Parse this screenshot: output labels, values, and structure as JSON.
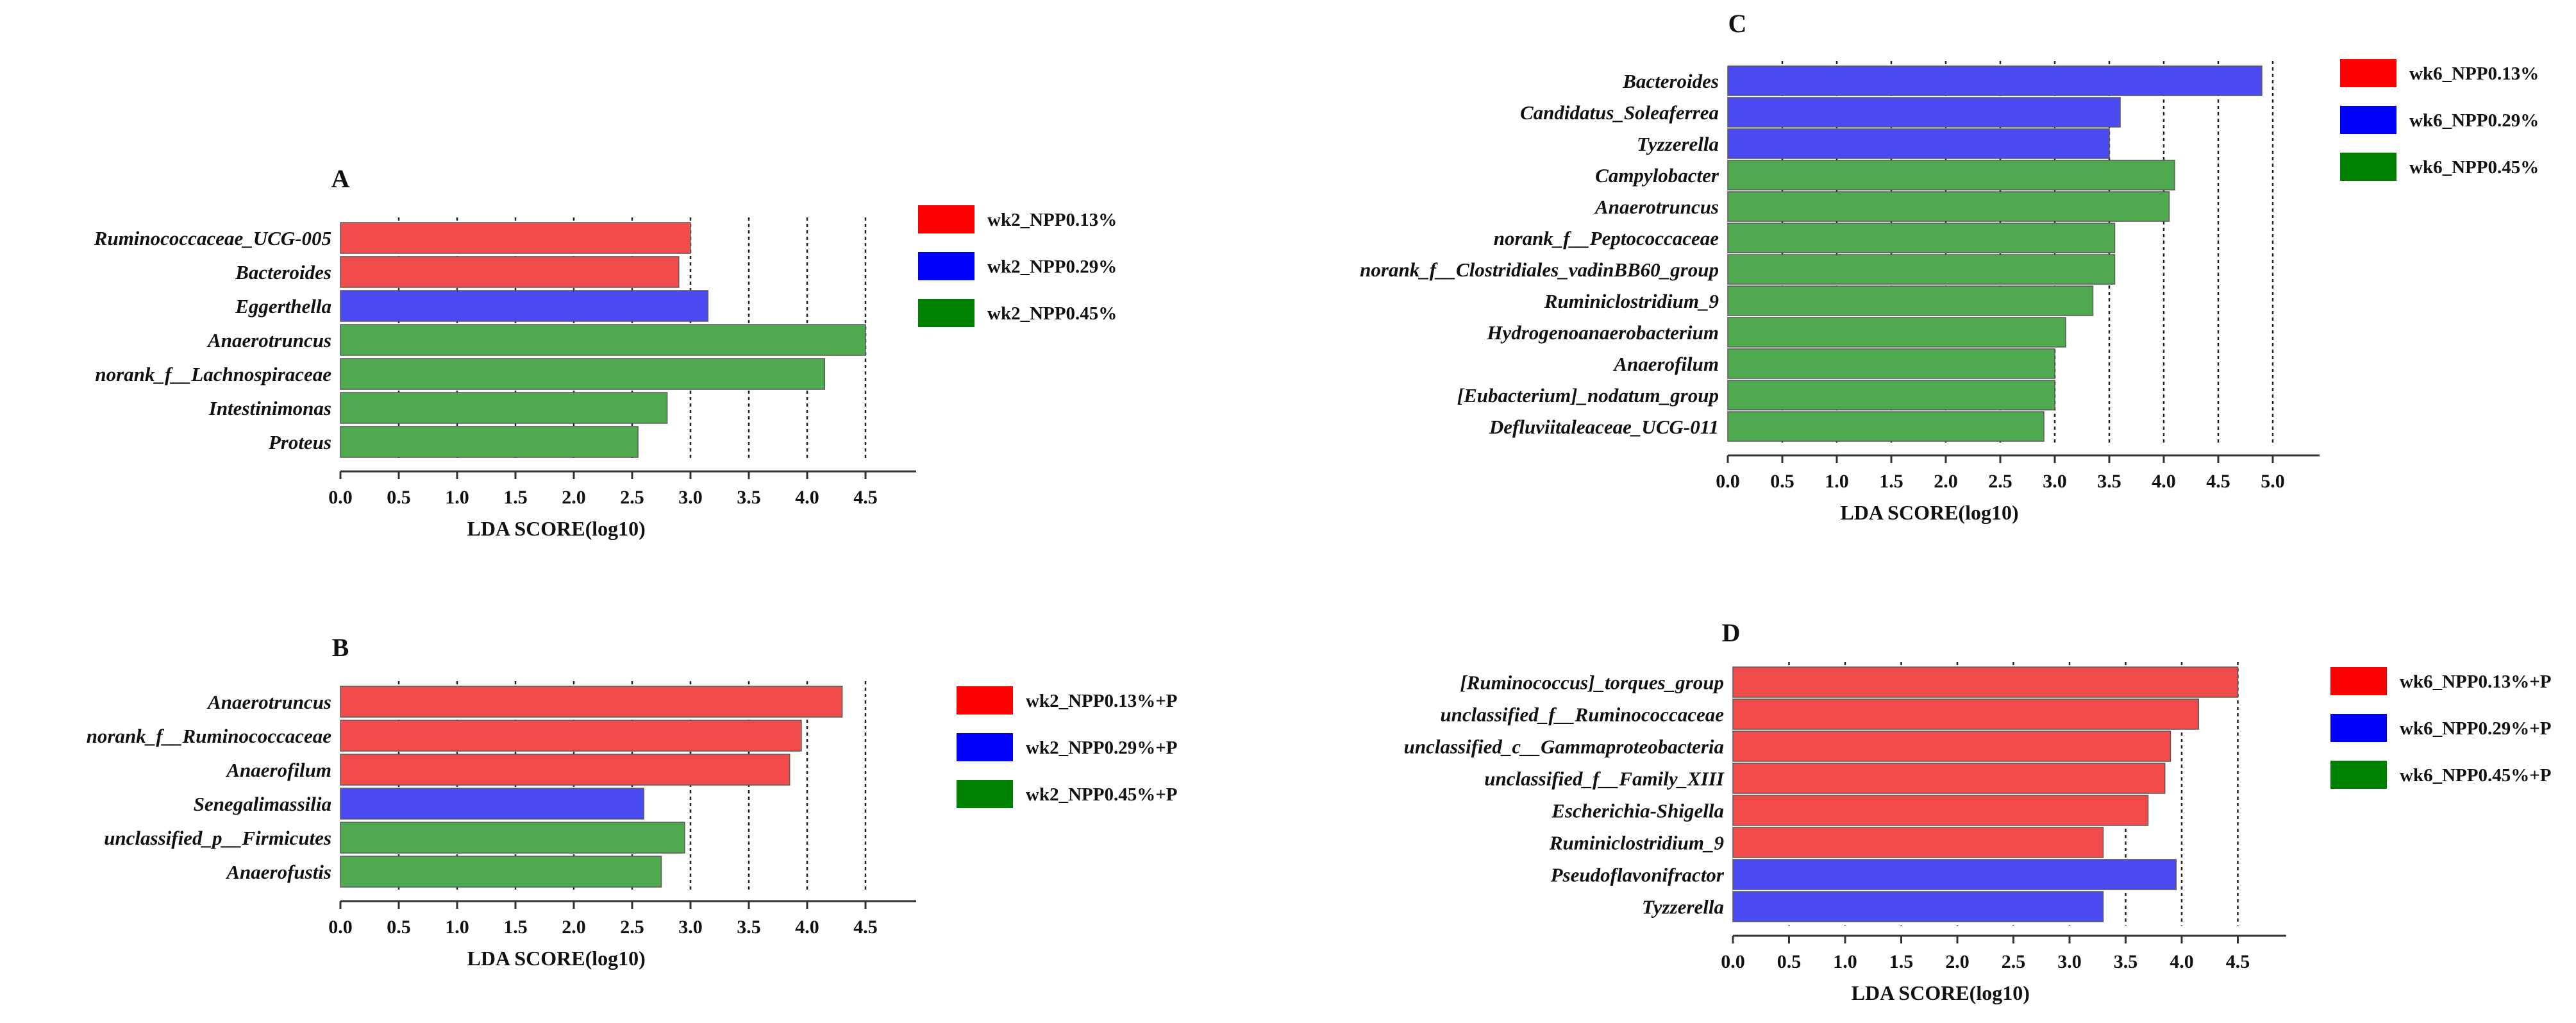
{
  "chart_data": [
    {
      "panel": "A",
      "type": "bar",
      "orientation": "horizontal",
      "title": "A",
      "xlabel": "LDA SCORE(log10)",
      "xlim": [
        0,
        5.0
      ],
      "xticks": [
        "0.0",
        "0.5",
        "1.0",
        "1.5",
        "2.0",
        "2.5",
        "3.0",
        "3.5",
        "4.0",
        "4.5"
      ],
      "grid": "vertical dotted lines",
      "legend_position": "right",
      "legend": [
        {
          "label": "wk2_NPP0.13%",
          "color": "#ff0000"
        },
        {
          "label": "wk2_NPP0.29%",
          "color": "#0000ff"
        },
        {
          "label": "wk2_NPP0.45%",
          "color": "#008000"
        }
      ],
      "bars": [
        {
          "label": "Ruminococcaceae_UCG-005",
          "value": 3.0,
          "group": 0
        },
        {
          "label": "Bacteroides",
          "value": 2.9,
          "group": 0
        },
        {
          "label": "Eggerthella",
          "value": 3.15,
          "group": 1
        },
        {
          "label": "Anaerotruncus",
          "value": 4.5,
          "group": 2
        },
        {
          "label": "norank_f__Lachnospiraceae",
          "value": 4.15,
          "group": 2
        },
        {
          "label": "Intestinimonas",
          "value": 2.8,
          "group": 2
        },
        {
          "label": "Proteus",
          "value": 2.55,
          "group": 2
        }
      ]
    },
    {
      "panel": "B",
      "type": "bar",
      "orientation": "horizontal",
      "title": "B",
      "xlabel": "LDA SCORE(log10)",
      "xlim": [
        0,
        5.0
      ],
      "xticks": [
        "0.0",
        "0.5",
        "1.0",
        "1.5",
        "2.0",
        "2.5",
        "3.0",
        "3.5",
        "4.0",
        "4.5"
      ],
      "grid": "vertical dotted lines",
      "legend_position": "right",
      "legend": [
        {
          "label": "wk2_NPP0.13%+P",
          "color": "#ff0000"
        },
        {
          "label": "wk2_NPP0.29%+P",
          "color": "#0000ff"
        },
        {
          "label": "wk2_NPP0.45%+P",
          "color": "#008000"
        }
      ],
      "bars": [
        {
          "label": "Anaerotruncus",
          "value": 4.3,
          "group": 0
        },
        {
          "label": "norank_f__Ruminococcaceae",
          "value": 3.95,
          "group": 0
        },
        {
          "label": "Anaerofilum",
          "value": 3.85,
          "group": 0
        },
        {
          "label": "Senegalimassilia",
          "value": 2.6,
          "group": 1
        },
        {
          "label": "unclassified_p__Firmicutes",
          "value": 2.95,
          "group": 2
        },
        {
          "label": "Anaerofustis",
          "value": 2.75,
          "group": 2
        }
      ]
    },
    {
      "panel": "C",
      "type": "bar",
      "orientation": "horizontal",
      "title": "C",
      "xlabel": "LDA SCORE(log10)",
      "xlim": [
        0,
        5.5
      ],
      "xticks": [
        "0.0",
        "0.5",
        "1.0",
        "1.5",
        "2.0",
        "2.5",
        "3.0",
        "3.5",
        "4.0",
        "4.5",
        "5.0"
      ],
      "grid": "vertical dotted lines",
      "legend_position": "right",
      "legend": [
        {
          "label": "wk6_NPP0.13%",
          "color": "#ff0000"
        },
        {
          "label": "wk6_NPP0.29%",
          "color": "#0000ff"
        },
        {
          "label": "wk6_NPP0.45%",
          "color": "#008000"
        }
      ],
      "bars": [
        {
          "label": "Bacteroides",
          "value": 4.9,
          "group": 1
        },
        {
          "label": "Candidatus_Soleaferrea",
          "value": 3.6,
          "group": 1
        },
        {
          "label": "Tyzzerella",
          "value": 3.5,
          "group": 1
        },
        {
          "label": "Campylobacter",
          "value": 4.1,
          "group": 2
        },
        {
          "label": "Anaerotruncus",
          "value": 4.05,
          "group": 2
        },
        {
          "label": "norank_f__Peptococcaceae",
          "value": 3.55,
          "group": 2
        },
        {
          "label": "norank_f__Clostridiales_vadinBB60_group",
          "value": 3.55,
          "group": 2
        },
        {
          "label": "Ruminiclostridium_9",
          "value": 3.35,
          "group": 2
        },
        {
          "label": "Hydrogenoanaerobacterium",
          "value": 3.1,
          "group": 2
        },
        {
          "label": "Anaerofilum",
          "value": 3.0,
          "group": 2
        },
        {
          "label": "[Eubacterium]_nodatum_group",
          "value": 3.0,
          "group": 2
        },
        {
          "label": "Defluviitaleaceae_UCG-011",
          "value": 2.9,
          "group": 2
        }
      ]
    },
    {
      "panel": "D",
      "type": "bar",
      "orientation": "horizontal",
      "title": "D",
      "xlabel": "LDA SCORE(log10)",
      "xlim": [
        0,
        5.0
      ],
      "xticks": [
        "0.0",
        "0.5",
        "1.0",
        "1.5",
        "2.0",
        "2.5",
        "3.0",
        "3.5",
        "4.0",
        "4.5"
      ],
      "grid": "vertical dotted lines",
      "legend_position": "right",
      "legend": [
        {
          "label": "wk6_NPP0.13%+P",
          "color": "#ff0000"
        },
        {
          "label": "wk6_NPP0.29%+P",
          "color": "#0000ff"
        },
        {
          "label": "wk6_NPP0.45%+P",
          "color": "#008000"
        }
      ],
      "bars": [
        {
          "label": "[Ruminococcus]_torques_group",
          "value": 4.5,
          "group": 0
        },
        {
          "label": "unclassified_f__Ruminococcaceae",
          "value": 4.15,
          "group": 0
        },
        {
          "label": "unclassified_c__Gammaproteobacteria",
          "value": 3.9,
          "group": 0
        },
        {
          "label": "unclassified_f__Family_XIII",
          "value": 3.85,
          "group": 0
        },
        {
          "label": "Escherichia-Shigella",
          "value": 3.7,
          "group": 0
        },
        {
          "label": "Ruminiclostridium_9",
          "value": 3.3,
          "group": 0
        },
        {
          "label": "Pseudoflavonifractor",
          "value": 3.95,
          "group": 1
        },
        {
          "label": "Tyzzerella",
          "value": 3.3,
          "group": 1
        }
      ]
    }
  ],
  "bar_fill_colors": [
    "#f14b4b",
    "#4b4bf1",
    "#4faa4f"
  ]
}
